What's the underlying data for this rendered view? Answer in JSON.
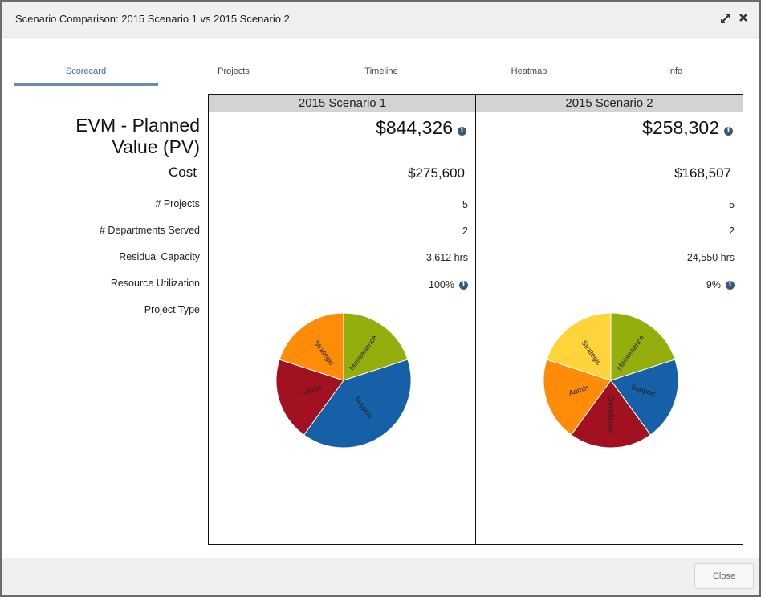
{
  "dialog": {
    "title": "Scenario Comparison: 2015 Scenario 1 vs 2015 Scenario 2",
    "close_label": "Close"
  },
  "tabs": [
    {
      "label": "Scorecard",
      "active": true
    },
    {
      "label": "Projects",
      "active": false
    },
    {
      "label": "Timeline",
      "active": false
    },
    {
      "label": "Heatmap",
      "active": false
    },
    {
      "label": "Info",
      "active": false
    }
  ],
  "metrics": {
    "pv": "EVM - Planned Value (PV)",
    "pv_line1": "EVM - Planned",
    "pv_line2": "Value (PV)",
    "cost": "Cost",
    "projects": "# Projects",
    "departments": "# Departments Served",
    "residual": "Residual Capacity",
    "utilization": "Resource Utilization",
    "project_type": "Project Type"
  },
  "scenarios": [
    {
      "name": "2015 Scenario 1",
      "pv": "$844,326",
      "cost": "$275,600",
      "projects": "5",
      "departments": "2",
      "residual": "-3,612 hrs",
      "utilization": "100%"
    },
    {
      "name": "2015 Scenario 2",
      "pv": "$258,302",
      "cost": "$168,507",
      "projects": "5",
      "departments": "2",
      "residual": "24,550 hrs",
      "utilization": "9%"
    }
  ],
  "chart_data": [
    {
      "type": "pie",
      "title": "",
      "labels": [
        "Maintenance",
        "Support",
        "Admin",
        "Strategic"
      ],
      "values": [
        20,
        40,
        20,
        20
      ],
      "colors": [
        "#93ae0d",
        "#1560a6",
        "#a21120",
        "#ff8c09"
      ]
    },
    {
      "type": "pie",
      "title": "",
      "labels": [
        "Maintenance",
        "Support",
        "Compliance",
        "Admin",
        "Strategic"
      ],
      "values": [
        20,
        20,
        20,
        20,
        20
      ],
      "colors": [
        "#93ae0d",
        "#1560a6",
        "#a21120",
        "#ff8c09",
        "#ffd43b"
      ]
    }
  ]
}
